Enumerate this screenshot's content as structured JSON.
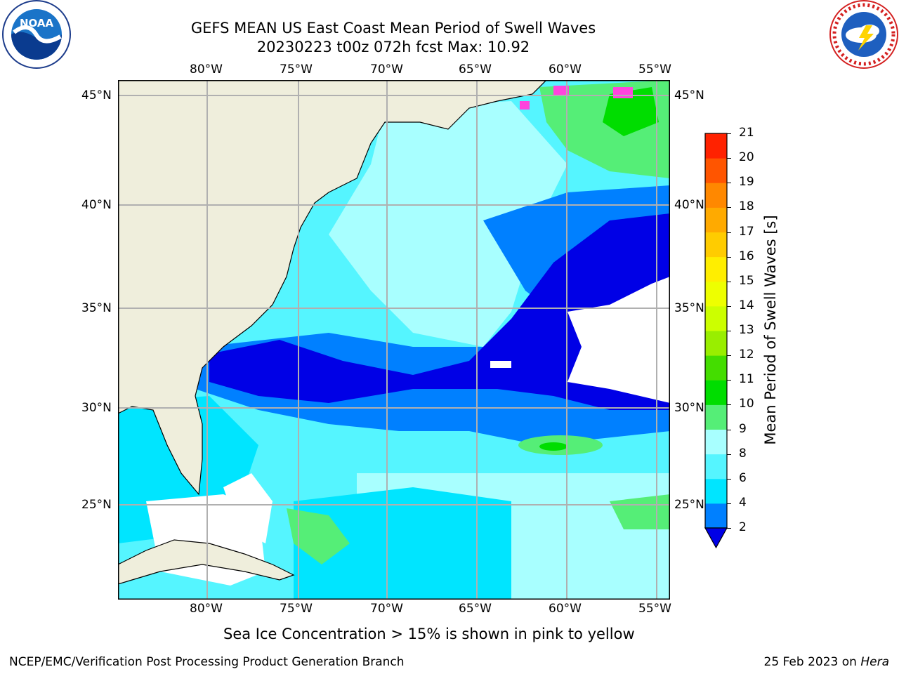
{
  "header": {
    "title_line1": "GEFS MEAN US East Coast Mean Period of Swell Waves",
    "title_line2": "20230223 t00z 072h fcst   Max: 10.92"
  },
  "logos": {
    "left": "NOAA",
    "left_ring": "NATIONAL OCEANIC AND ATMOSPHERIC ADMINISTRATION · U.S. DEPARTMENT OF COMMERCE",
    "right_ring": "NATIONAL WEATHER SERVICE"
  },
  "map": {
    "lon_labels": [
      "80°W",
      "75°W",
      "70°W",
      "65°W",
      "60°W",
      "55°W"
    ],
    "lat_labels": [
      "45°N",
      "40°N",
      "35°N",
      "30°N",
      "25°N"
    ],
    "colors": {
      "land": "#efeedc",
      "grid": "#b0b0b0",
      "no_data": "#ffffff"
    }
  },
  "colorbar": {
    "label": "Mean Period of Swell Waves [s]",
    "ticks": [
      "2",
      "4",
      "6",
      "8",
      "9",
      "10",
      "11",
      "12",
      "13",
      "14",
      "15",
      "16",
      "17",
      "18",
      "19",
      "20",
      "21"
    ],
    "colors": [
      "#0000e6",
      "#0080ff",
      "#00e5ff",
      "#55f5ff",
      "#a8ffff",
      "#55ee77",
      "#00dd00",
      "#44dd00",
      "#99ee00",
      "#ccff00",
      "#eeff00",
      "#ffee00",
      "#ffcc00",
      "#ffaa00",
      "#ff8800",
      "#ff5500",
      "#ff2200",
      "#ff0000"
    ]
  },
  "notes": {
    "sea_ice": "Sea Ice Concentration > 15% is shown in pink to yellow"
  },
  "footer": {
    "left": "NCEP/EMC/Verification Post Processing Product Generation Branch",
    "right_date": "25 Feb 2023 on ",
    "right_machine": "Hera"
  }
}
